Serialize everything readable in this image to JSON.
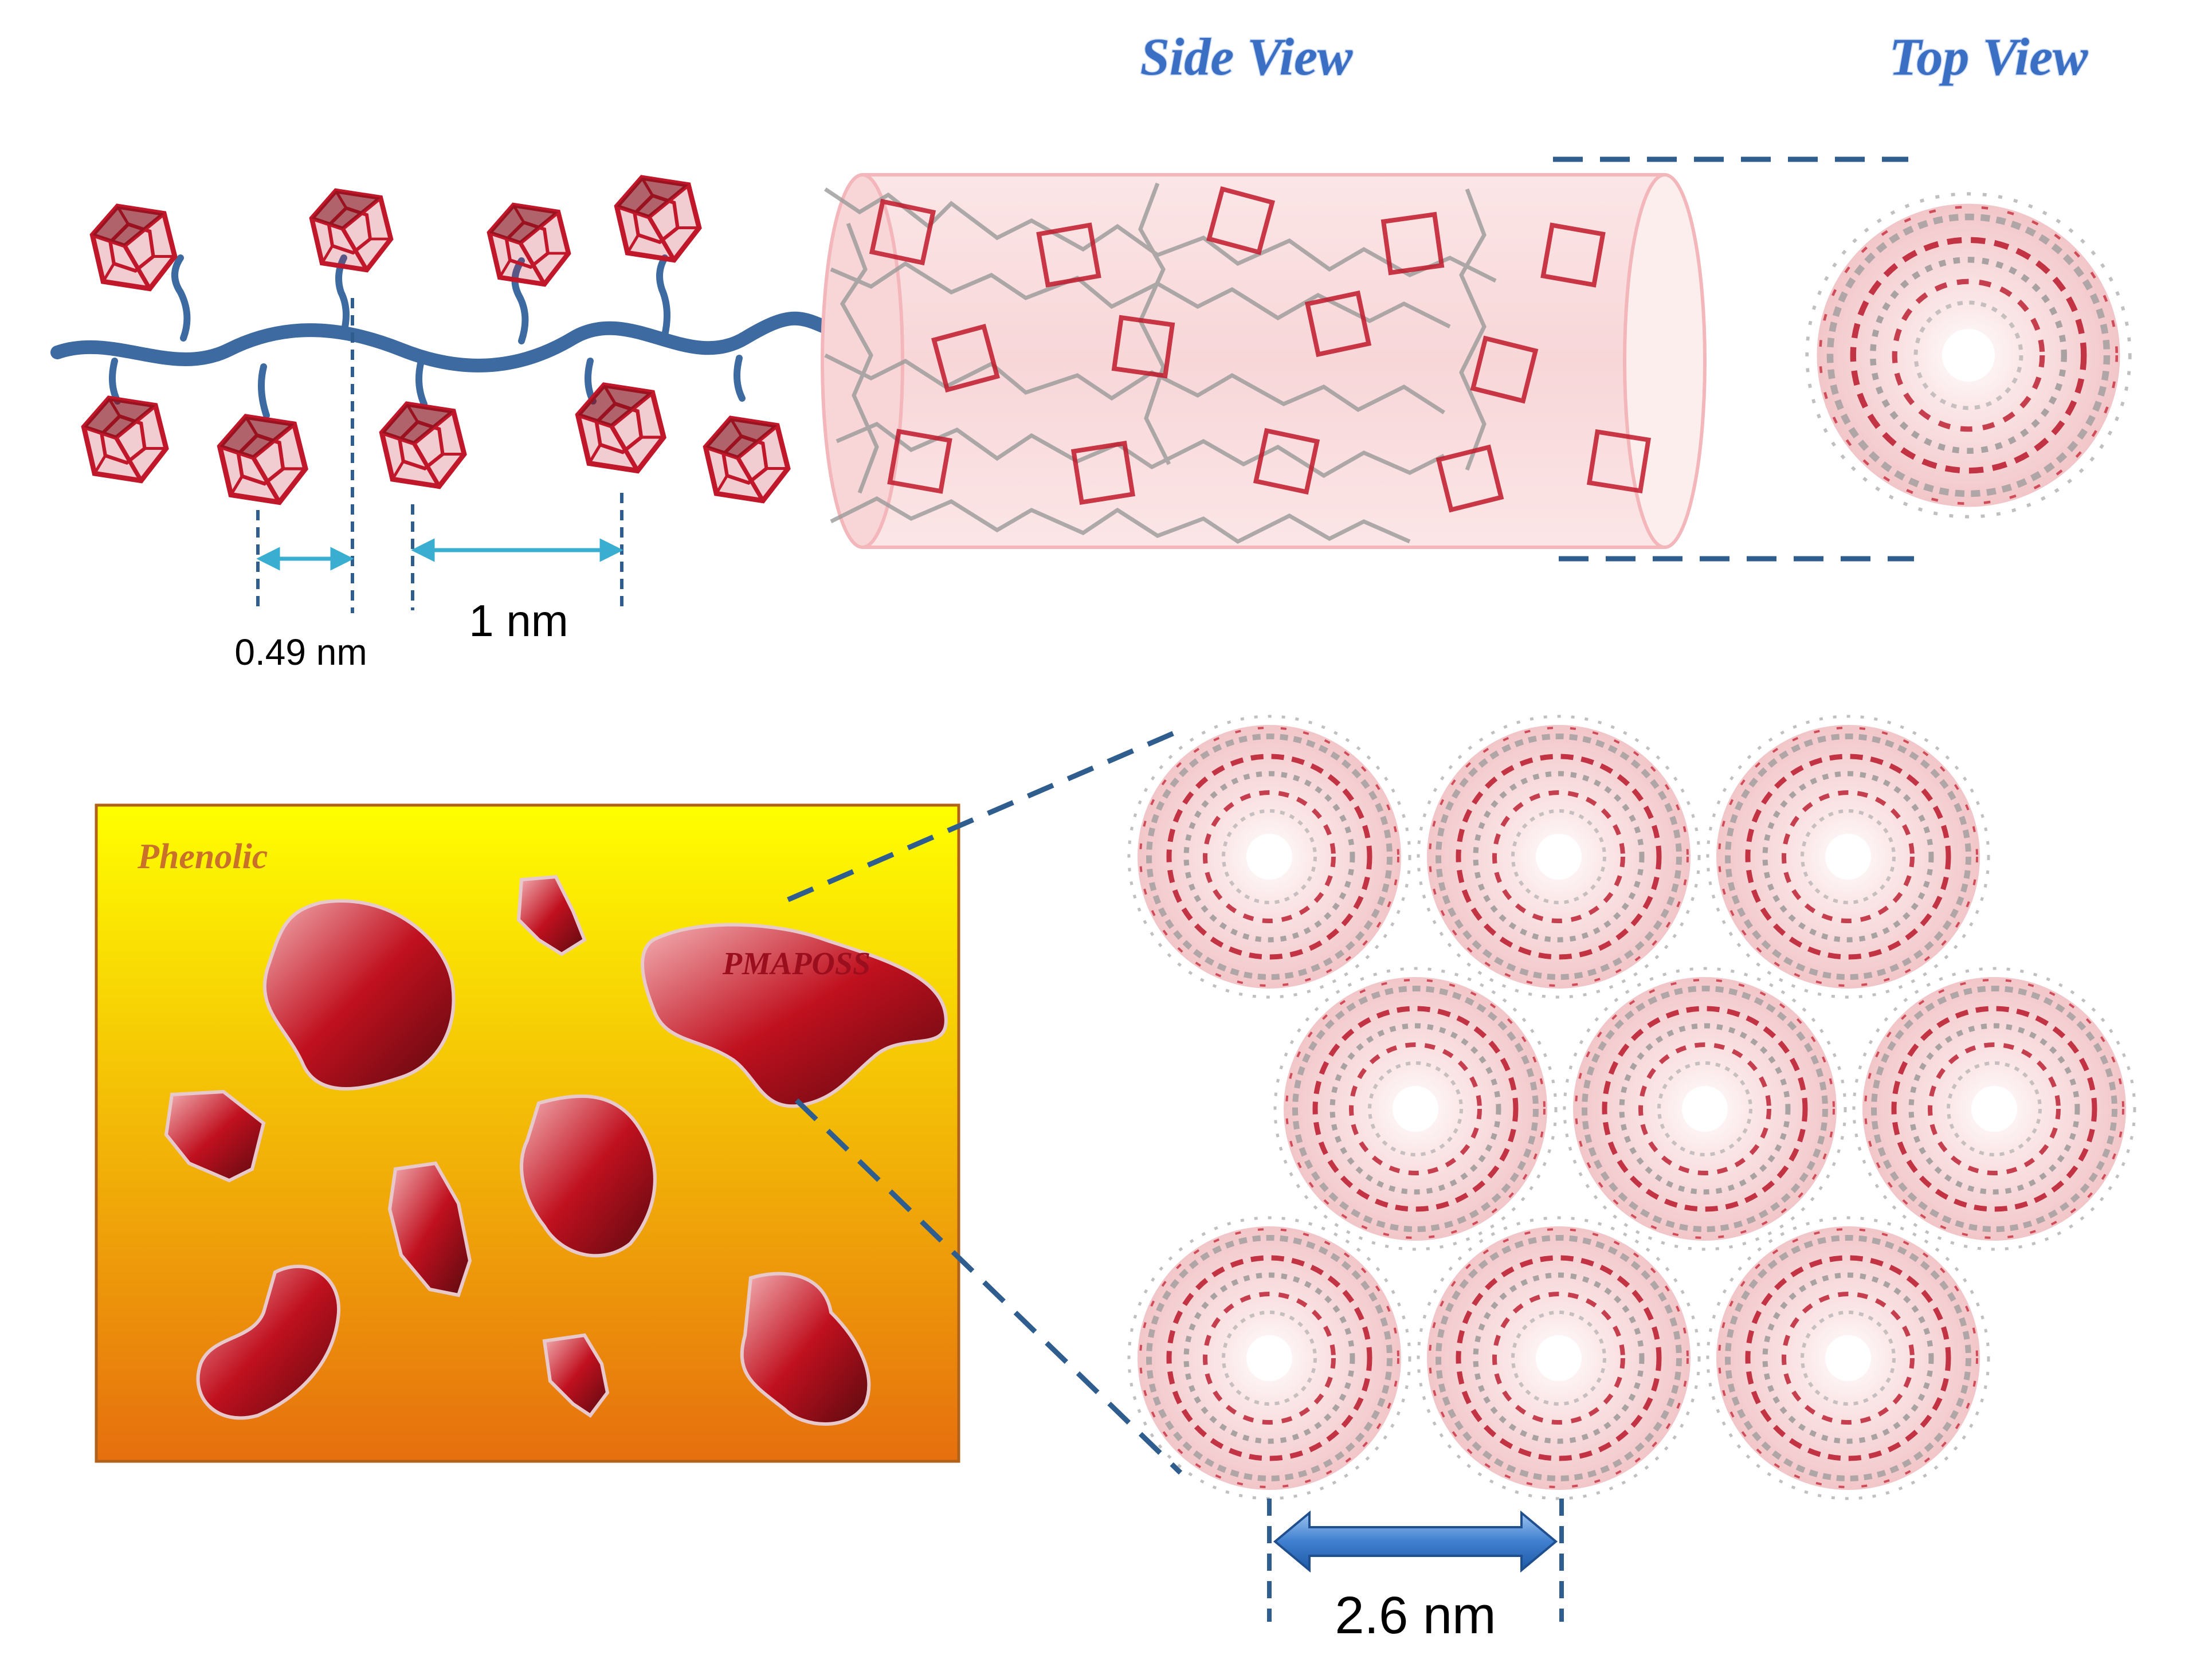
{
  "titles": {
    "side_view": "Side View",
    "top_view": "Top View"
  },
  "dimensions": {
    "spacing_small": "0.49 nm",
    "spacing_large": "1 nm",
    "column_diameter": "2.6 nm"
  },
  "matrix": {
    "phenolic_label": "Phenolic",
    "domain_label": "PMAPOSS"
  },
  "colors": {
    "title_blue": "#3a6fc4",
    "backbone_blue": "#3d6aa0",
    "dash_blue": "#2f5d8e",
    "arrow_cyan": "#3aaed0",
    "cage_red": "#c0182a",
    "tube_pink": "#f6c9cc",
    "matrix_top_yellow": "#ffff00",
    "matrix_bottom_orange": "#e66f0e",
    "arrow_fill_blue": "#4a86d0"
  },
  "icons": [
    "poss-cage-icon",
    "polymer-backbone-icon",
    "molecular-column-icon",
    "dimension-arrow-icon"
  ]
}
